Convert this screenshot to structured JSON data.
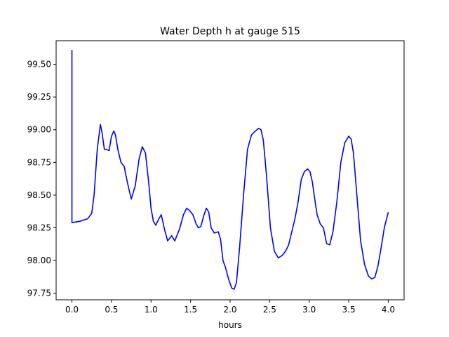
{
  "chart_data": {
    "type": "line",
    "title": "Water Depth h at gauge 515",
    "xlabel": "hours",
    "ylabel": "",
    "xlim": [
      -0.2,
      4.2
    ],
    "ylim": [
      97.7,
      99.68
    ],
    "x_ticks": [
      0.0,
      0.5,
      1.0,
      1.5,
      2.0,
      2.5,
      3.0,
      3.5,
      4.0
    ],
    "x_tick_labels": [
      "0.0",
      "0.5",
      "1.0",
      "1.5",
      "2.0",
      "2.5",
      "3.0",
      "3.5",
      "4.0"
    ],
    "y_ticks": [
      97.75,
      98.0,
      98.25,
      98.5,
      98.75,
      99.0,
      99.25,
      99.5
    ],
    "y_tick_labels": [
      "97.75",
      "98.00",
      "98.25",
      "98.50",
      "98.75",
      "99.00",
      "99.25",
      "99.50"
    ],
    "grid": false,
    "line_color": "#0000ff",
    "series": [
      {
        "x": [
          0.0,
          0.0,
          0.0,
          0.1,
          0.2,
          0.25,
          0.28,
          0.32,
          0.36,
          0.38,
          0.41,
          0.44,
          0.47,
          0.5,
          0.53,
          0.55,
          0.58,
          0.62,
          0.66,
          0.7,
          0.75,
          0.8,
          0.85,
          0.89,
          0.93,
          0.97,
          1.0,
          1.03,
          1.06,
          1.1,
          1.13,
          1.17,
          1.21,
          1.26,
          1.3,
          1.36,
          1.41,
          1.45,
          1.49,
          1.53,
          1.57,
          1.6,
          1.63,
          1.67,
          1.7,
          1.73,
          1.76,
          1.8,
          1.85,
          1.88,
          1.91,
          1.94,
          1.98,
          2.02,
          2.05,
          2.08,
          2.12,
          2.17,
          2.22,
          2.27,
          2.32,
          2.36,
          2.39,
          2.42,
          2.46,
          2.51,
          2.56,
          2.61,
          2.66,
          2.7,
          2.74,
          2.78,
          2.82,
          2.86,
          2.9,
          2.94,
          2.98,
          3.01,
          3.04,
          3.07,
          3.1,
          3.14,
          3.18,
          3.22,
          3.26,
          3.3,
          3.35,
          3.4,
          3.45,
          3.5,
          3.53,
          3.56,
          3.6,
          3.65,
          3.7,
          3.75,
          3.79,
          3.83,
          3.87,
          3.91,
          3.95,
          4.0
        ],
        "y": [
          99.61,
          98.29,
          98.29,
          98.3,
          98.32,
          98.36,
          98.5,
          98.85,
          99.04,
          98.98,
          98.85,
          98.85,
          98.84,
          98.95,
          98.99,
          98.96,
          98.85,
          98.75,
          98.72,
          98.6,
          98.47,
          98.57,
          98.78,
          98.87,
          98.82,
          98.6,
          98.4,
          98.3,
          98.27,
          98.32,
          98.35,
          98.24,
          98.15,
          98.19,
          98.15,
          98.24,
          98.35,
          98.4,
          98.38,
          98.35,
          98.28,
          98.25,
          98.26,
          98.35,
          98.4,
          98.37,
          98.25,
          98.21,
          98.22,
          98.16,
          98.0,
          97.95,
          97.86,
          97.79,
          97.78,
          97.83,
          98.1,
          98.5,
          98.85,
          98.96,
          98.99,
          99.01,
          99.0,
          98.92,
          98.65,
          98.25,
          98.07,
          98.02,
          98.04,
          98.07,
          98.12,
          98.22,
          98.32,
          98.45,
          98.62,
          98.68,
          98.7,
          98.68,
          98.6,
          98.47,
          98.35,
          98.28,
          98.25,
          98.13,
          98.12,
          98.22,
          98.45,
          98.75,
          98.9,
          98.95,
          98.93,
          98.82,
          98.52,
          98.15,
          97.97,
          97.88,
          97.86,
          97.87,
          97.96,
          98.1,
          98.25,
          98.37
        ]
      }
    ]
  }
}
